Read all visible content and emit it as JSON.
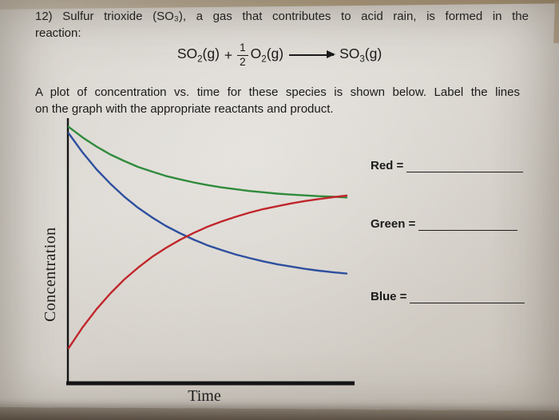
{
  "question": {
    "line1": "12) Sulfur trioxide (SO₃), a gas that contributes to acid rain, is formed in the",
    "line2": "reaction:",
    "instruction_line1": "A plot of concentration vs. time for these species is shown below. Label the lines",
    "instruction_line2": "on the graph with the appropriate reactants and product."
  },
  "equation": {
    "species1_base": "SO",
    "species1_sub": "2",
    "species1_state": "(g)",
    "plus": "+",
    "frac_num": "1",
    "frac_den": "2",
    "species2_base": "O",
    "species2_sub": "2",
    "species2_state": "(g)",
    "product_base": "SO",
    "product_sub": "3",
    "product_state": "(g)"
  },
  "graph": {
    "ylabel": "Concentration",
    "xlabel": "Time"
  },
  "answers": [
    {
      "label": "Red =",
      "value": ""
    },
    {
      "label": "Green =",
      "value": ""
    },
    {
      "label": "Blue =",
      "value": ""
    }
  ],
  "colors": {
    "red_curve": "#c0262b",
    "green_curve": "#2f8b3c",
    "blue_curve": "#2d4f9e",
    "axis": "#151515",
    "text": "#1b1b1b"
  },
  "chart_data": {
    "type": "line",
    "title": "",
    "xlabel": "Time",
    "ylabel": "Concentration",
    "xlim": [
      0,
      10
    ],
    "ylim": [
      0,
      1
    ],
    "grid": false,
    "legend": "none (lines identified by color fill-in blanks)",
    "axis_ticks": "none (qualitative axes, arbitrary units)",
    "x": [
      0,
      0.5,
      1,
      1.5,
      2,
      2.5,
      3,
      3.5,
      4,
      4.5,
      5,
      5.5,
      6,
      6.5,
      7,
      7.5,
      8,
      8.5,
      9,
      9.5,
      10
    ],
    "series": [
      {
        "name": "green",
        "color": "#2f8b3c",
        "trend": "slow decrease, levels off",
        "values": [
          0.985,
          0.944,
          0.909,
          0.878,
          0.853,
          0.83,
          0.812,
          0.795,
          0.782,
          0.77,
          0.76,
          0.751,
          0.744,
          0.737,
          0.732,
          0.727,
          0.723,
          0.72,
          0.717,
          0.715,
          0.712
        ]
      },
      {
        "name": "blue",
        "color": "#2d4f9e",
        "trend": "steep decrease, levels off",
        "values": [
          0.96,
          0.886,
          0.821,
          0.765,
          0.715,
          0.672,
          0.635,
          0.602,
          0.574,
          0.549,
          0.527,
          0.509,
          0.492,
          0.478,
          0.465,
          0.454,
          0.445,
          0.436,
          0.429,
          0.423,
          0.418
        ]
      },
      {
        "name": "red",
        "color": "#c0262b",
        "trend": "increase from near zero, levels off",
        "values": [
          0.13,
          0.21,
          0.28,
          0.341,
          0.395,
          0.441,
          0.482,
          0.517,
          0.548,
          0.575,
          0.599,
          0.619,
          0.637,
          0.653,
          0.667,
          0.678,
          0.689,
          0.698,
          0.706,
          0.713,
          0.719
        ]
      }
    ]
  }
}
